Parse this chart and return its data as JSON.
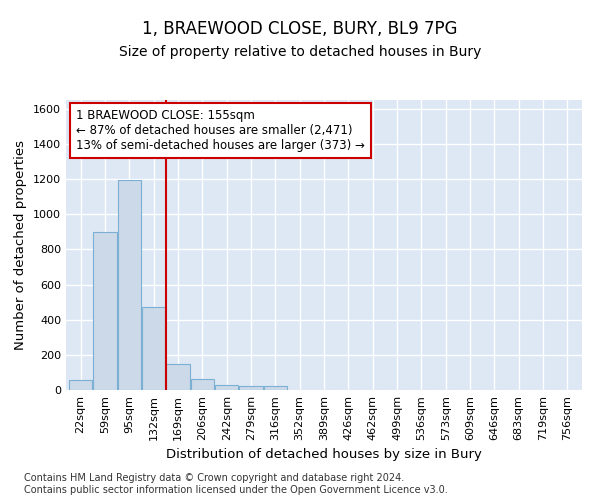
{
  "title": "1, BRAEWOOD CLOSE, BURY, BL9 7PG",
  "subtitle": "Size of property relative to detached houses in Bury",
  "xlabel": "Distribution of detached houses by size in Bury",
  "ylabel": "Number of detached properties",
  "footnote": "Contains HM Land Registry data © Crown copyright and database right 2024.\nContains public sector information licensed under the Open Government Licence v3.0.",
  "bar_labels": [
    "22sqm",
    "59sqm",
    "95sqm",
    "132sqm",
    "169sqm",
    "206sqm",
    "242sqm",
    "279sqm",
    "316sqm",
    "352sqm",
    "389sqm",
    "426sqm",
    "462sqm",
    "499sqm",
    "536sqm",
    "573sqm",
    "609sqm",
    "646sqm",
    "683sqm",
    "719sqm",
    "756sqm"
  ],
  "bar_values": [
    55,
    900,
    1195,
    470,
    150,
    62,
    30,
    20,
    20,
    0,
    0,
    0,
    0,
    0,
    0,
    0,
    0,
    0,
    0,
    0,
    0
  ],
  "bar_color": "#ccd9e8",
  "bar_edge_color": "#7bafd4",
  "ylim": [
    0,
    1650
  ],
  "yticks": [
    0,
    200,
    400,
    600,
    800,
    1000,
    1200,
    1400,
    1600
  ],
  "vline_x": 3.5,
  "vline_color": "#cc0000",
  "annotation_text": "1 BRAEWOOD CLOSE: 155sqm\n← 87% of detached houses are smaller (2,471)\n13% of semi-detached houses are larger (373) →",
  "annotation_box_facecolor": "#ffffff",
  "annotation_box_edgecolor": "#cc0000",
  "fig_bg_color": "#ffffff",
  "plot_bg_color": "#dde8f4",
  "grid_color": "#ffffff",
  "title_fontsize": 12,
  "subtitle_fontsize": 10,
  "axis_label_fontsize": 9.5,
  "tick_fontsize": 8,
  "annotation_fontsize": 8.5,
  "footnote_fontsize": 7
}
